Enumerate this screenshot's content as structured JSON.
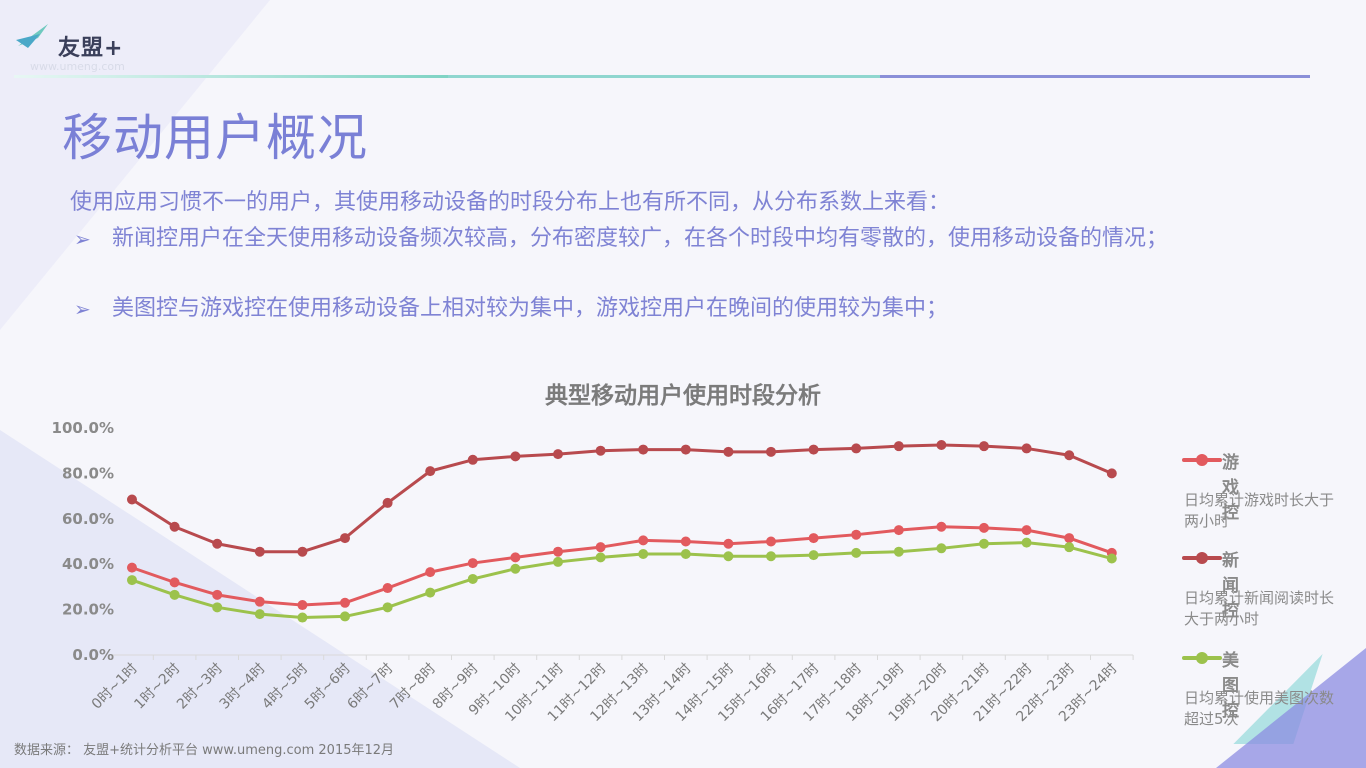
{
  "logo": {
    "text": "友盟+",
    "site": "www.umeng.com"
  },
  "title": "移动用户概况",
  "intro": "使用应用习惯不一的用户，其使用移动设备的时段分布上也有所不同，从分布系数上来看：",
  "bullets": [
    "新闻控用户在全天使用移动设备频次较高，分布密度较广，在各个时段中均有零散的，使用移动设备的情况；",
    "美图控与游戏控在使用移动设备上相对较为集中，游戏控用户在晚间的使用较为集中；"
  ],
  "bullet_marker": "➢",
  "source": "数据来源： 友盟+统计分析平台 www.umeng.com 2015年12月",
  "colors": {
    "game": "#e25a5e",
    "news": "#b84a4e",
    "meitu": "#9cc24c",
    "accent": "#7a80d6"
  },
  "chart_data": {
    "type": "line",
    "title": "典型移动用户使用时段分析",
    "categories": [
      "0时~1时",
      "1时~2时",
      "2时~3时",
      "3时~4时",
      "4时~5时",
      "5时~6时",
      "6时~7时",
      "7时~8时",
      "8时~9时",
      "9时~10时",
      "10时~11时",
      "11时~12时",
      "12时~13时",
      "13时~14时",
      "14时~15时",
      "15时~16时",
      "16时~17时",
      "17时~18时",
      "18时~19时",
      "19时~20时",
      "20时~21时",
      "21时~22时",
      "22时~23时",
      "23时~24时"
    ],
    "ylim": [
      0,
      100
    ],
    "yticks": [
      "0.0%",
      "20.0%",
      "40.0%",
      "60.0%",
      "80.0%",
      "100.0%"
    ],
    "grid": false,
    "legend": "right",
    "series": [
      {
        "name": "游戏控",
        "desc": "日均累计游戏时长大于两小时",
        "color": "#e25a5e",
        "values": [
          38.5,
          32,
          26.5,
          23.5,
          22,
          23,
          29.5,
          36.5,
          40.5,
          43,
          45.5,
          47.5,
          50.5,
          50,
          49,
          50,
          51.5,
          53,
          55,
          56.5,
          56,
          55,
          51.5,
          45
        ]
      },
      {
        "name": "新闻控",
        "desc": "日均累计新闻阅读时长大于两小时",
        "color": "#b84a4e",
        "values": [
          68.5,
          56.5,
          49,
          45.5,
          45.5,
          51.5,
          67,
          81,
          86,
          87.5,
          88.5,
          90,
          90.5,
          90.5,
          89.5,
          89.5,
          90.5,
          91,
          92,
          92.5,
          92,
          91,
          88,
          80
        ]
      },
      {
        "name": "美图控",
        "desc": "日均累计使用美图次数超过5次",
        "color": "#9cc24c",
        "values": [
          33,
          26.5,
          21,
          18,
          16.5,
          17,
          21,
          27.5,
          33.5,
          38,
          41,
          43,
          44.5,
          44.5,
          43.5,
          43.5,
          44,
          45,
          45.5,
          47,
          49,
          49.5,
          47.5,
          42.5
        ]
      }
    ]
  }
}
